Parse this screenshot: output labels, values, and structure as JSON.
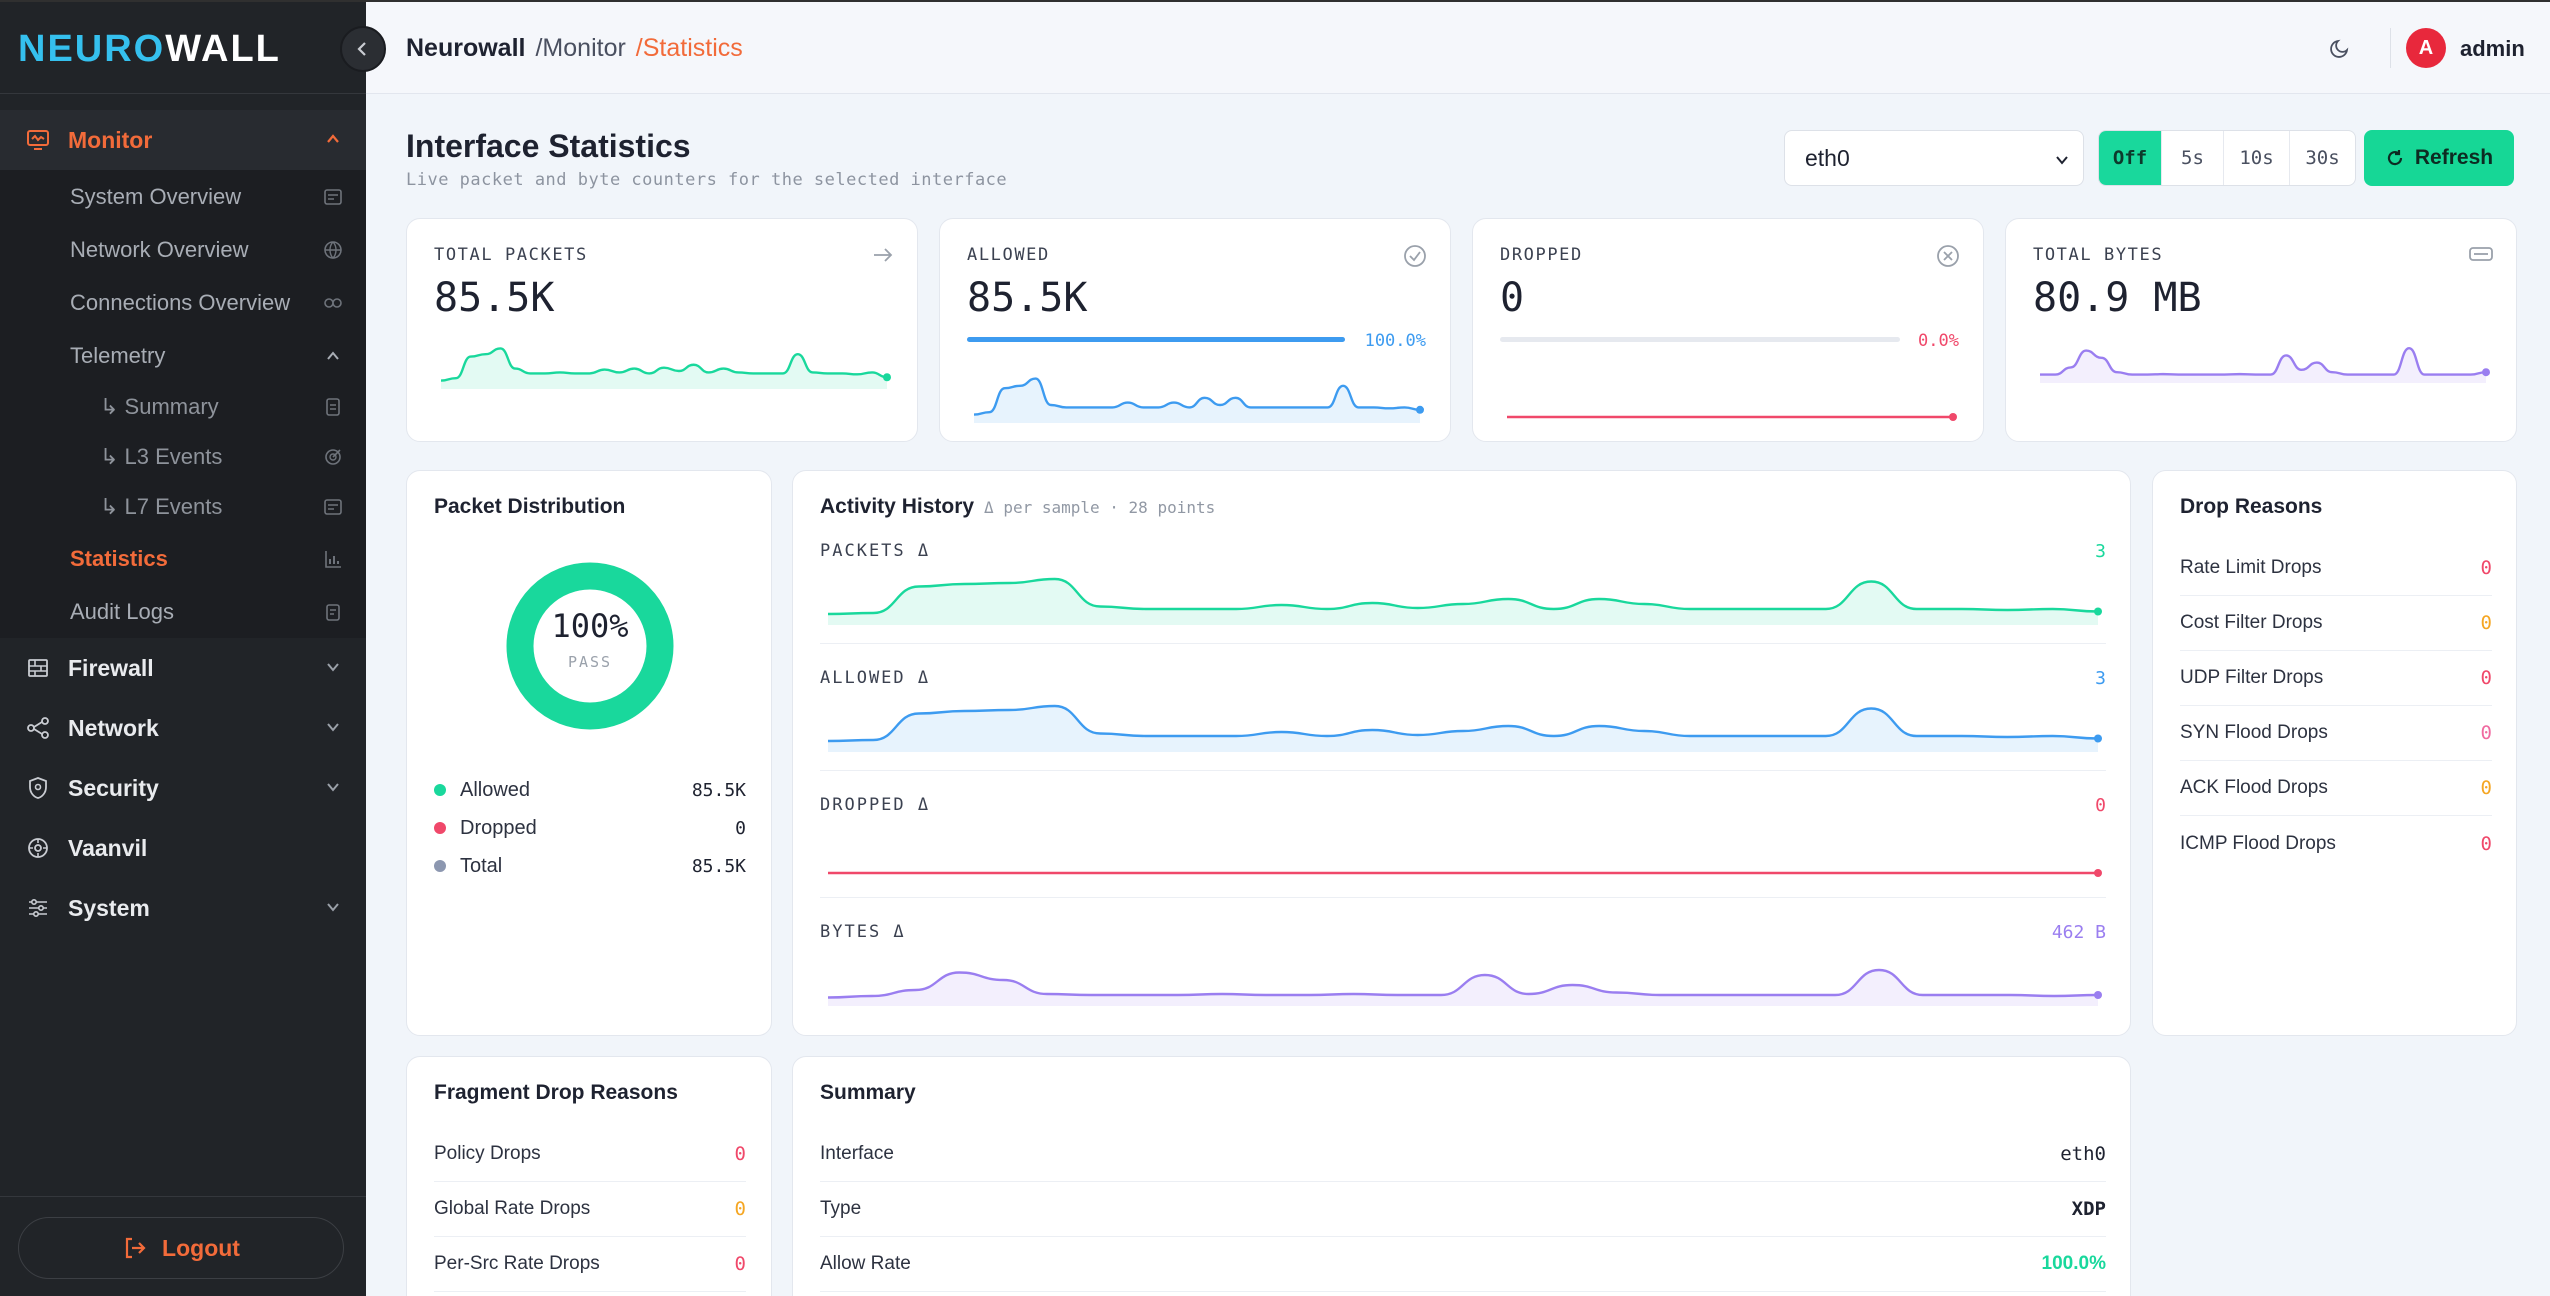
{
  "brand": {
    "logo_part1": "NEURO",
    "logo_part2": "WALL"
  },
  "sidebar": {
    "monitor": "Monitor",
    "system_overview": "System Overview",
    "network_overview": "Network Overview",
    "connections_overview": "Connections Overview",
    "telemetry": "Telemetry",
    "summary": "↳ Summary",
    "l3_events": "↳ L3 Events",
    "l7_events": "↳ L7 Events",
    "statistics": "Statistics",
    "audit_logs": "Audit Logs",
    "firewall": "Firewall",
    "network": "Network",
    "security": "Security",
    "vaanvil": "Vaanvil",
    "system": "System",
    "logout": "Logout"
  },
  "header": {
    "crumb1": "Neurowall",
    "crumb2": "/Monitor",
    "crumb3": "/Statistics",
    "avatar_letter": "A",
    "username": "admin"
  },
  "page": {
    "title": "Interface Statistics",
    "subtitle": "Live packet and byte counters for the selected interface",
    "interface": "eth0",
    "intervals": [
      "Off",
      "5s",
      "10s",
      "30s"
    ],
    "active_interval": "Off",
    "refresh": "Refresh"
  },
  "stats": {
    "total_packets": {
      "label": "TOTAL PACKETS",
      "value": "85.5K"
    },
    "allowed": {
      "label": "ALLOWED",
      "value": "85.5K",
      "pct": "100.0%",
      "fraction": 1.0
    },
    "dropped": {
      "label": "DROPPED",
      "value": "0",
      "pct": "0.0%",
      "fraction": 0.0
    },
    "total_bytes": {
      "label": "TOTAL BYTES",
      "value": "80.9 MB"
    }
  },
  "distribution": {
    "title": "Packet Distribution",
    "center": "100%",
    "center_sub": "PASS",
    "pass_fraction": 1.0,
    "items": [
      {
        "label": "Allowed",
        "value": "85.5K",
        "color": "#19d89c"
      },
      {
        "label": "Dropped",
        "value": "0",
        "color": "#f0486a"
      },
      {
        "label": "Total",
        "value": "85.5K",
        "color": "#8c97b0"
      }
    ]
  },
  "activity": {
    "title": "Activity History",
    "meta": "Δ per sample · 28 points",
    "rows": [
      {
        "label": "PACKETS Δ",
        "value": "3",
        "color": "#19d89c"
      },
      {
        "label": "ALLOWED Δ",
        "value": "3",
        "color": "#3d9bf0"
      },
      {
        "label": "DROPPED Δ",
        "value": "0",
        "color": "#f0486a"
      },
      {
        "label": "BYTES Δ",
        "value": "462 B",
        "color": "#9a7ef0"
      }
    ]
  },
  "drop_reasons": {
    "title": "Drop Reasons",
    "items": [
      {
        "label": "Rate Limit Drops",
        "value": "0",
        "color": "#f0486a"
      },
      {
        "label": "Cost Filter Drops",
        "value": "0",
        "color": "#f5a623"
      },
      {
        "label": "UDP Filter Drops",
        "value": "0",
        "color": "#f0486a"
      },
      {
        "label": "SYN Flood Drops",
        "value": "0",
        "color": "#f06aa0"
      },
      {
        "label": "ACK Flood Drops",
        "value": "0",
        "color": "#f5a623"
      },
      {
        "label": "ICMP Flood Drops",
        "value": "0",
        "color": "#f0486a"
      }
    ]
  },
  "fragment_drops": {
    "title": "Fragment Drop Reasons",
    "items": [
      {
        "label": "Policy Drops",
        "value": "0",
        "color": "#f0486a"
      },
      {
        "label": "Global Rate Drops",
        "value": "0",
        "color": "#f5a623"
      },
      {
        "label": "Per-Src Rate Drops",
        "value": "0",
        "color": "#f0486a"
      }
    ]
  },
  "summary": {
    "title": "Summary",
    "items": [
      {
        "label": "Interface",
        "value": "eth0"
      },
      {
        "label": "Type",
        "value": "XDP"
      },
      {
        "label": "Allow Rate",
        "value": "100.0%"
      }
    ]
  },
  "colors": {
    "accent": "#f26b3a",
    "green": "#19d89c",
    "blue": "#3d9bf0",
    "red": "#f0486a",
    "purple": "#9a7ef0"
  }
}
